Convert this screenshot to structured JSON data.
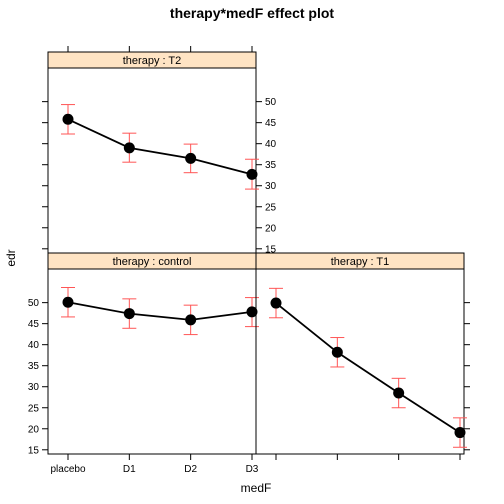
{
  "chart_data": {
    "type": "line",
    "title": "therapy*medF effect plot",
    "xlabel": "medF",
    "ylabel": "edr",
    "categories": [
      "placebo",
      "D1",
      "D2",
      "D3"
    ],
    "ylim": [
      14,
      58
    ],
    "yticks": [
      15,
      20,
      25,
      30,
      35,
      40,
      45,
      50
    ],
    "grid": false,
    "colors": {
      "line": "#000000",
      "error_bar": "#ff5555",
      "strip": "#ffe4c4"
    },
    "panels": [
      {
        "name": "T2",
        "strip_label": "therapy : T2",
        "values": [
          45.8,
          39.0,
          36.5,
          32.7
        ],
        "lower": [
          42.3,
          35.6,
          33.1,
          29.2
        ],
        "upper": [
          49.3,
          42.5,
          39.9,
          36.3
        ]
      },
      {
        "name": "control",
        "strip_label": "therapy : control",
        "values": [
          50.1,
          47.4,
          45.9,
          47.8
        ],
        "lower": [
          46.6,
          43.9,
          42.4,
          44.3
        ],
        "upper": [
          53.6,
          50.9,
          49.4,
          51.2
        ]
      },
      {
        "name": "T1",
        "strip_label": "therapy : T1",
        "values": [
          49.9,
          38.2,
          28.5,
          19.1
        ],
        "lower": [
          46.4,
          34.7,
          25.0,
          15.6
        ],
        "upper": [
          53.4,
          41.7,
          32.0,
          22.6
        ]
      }
    ]
  }
}
